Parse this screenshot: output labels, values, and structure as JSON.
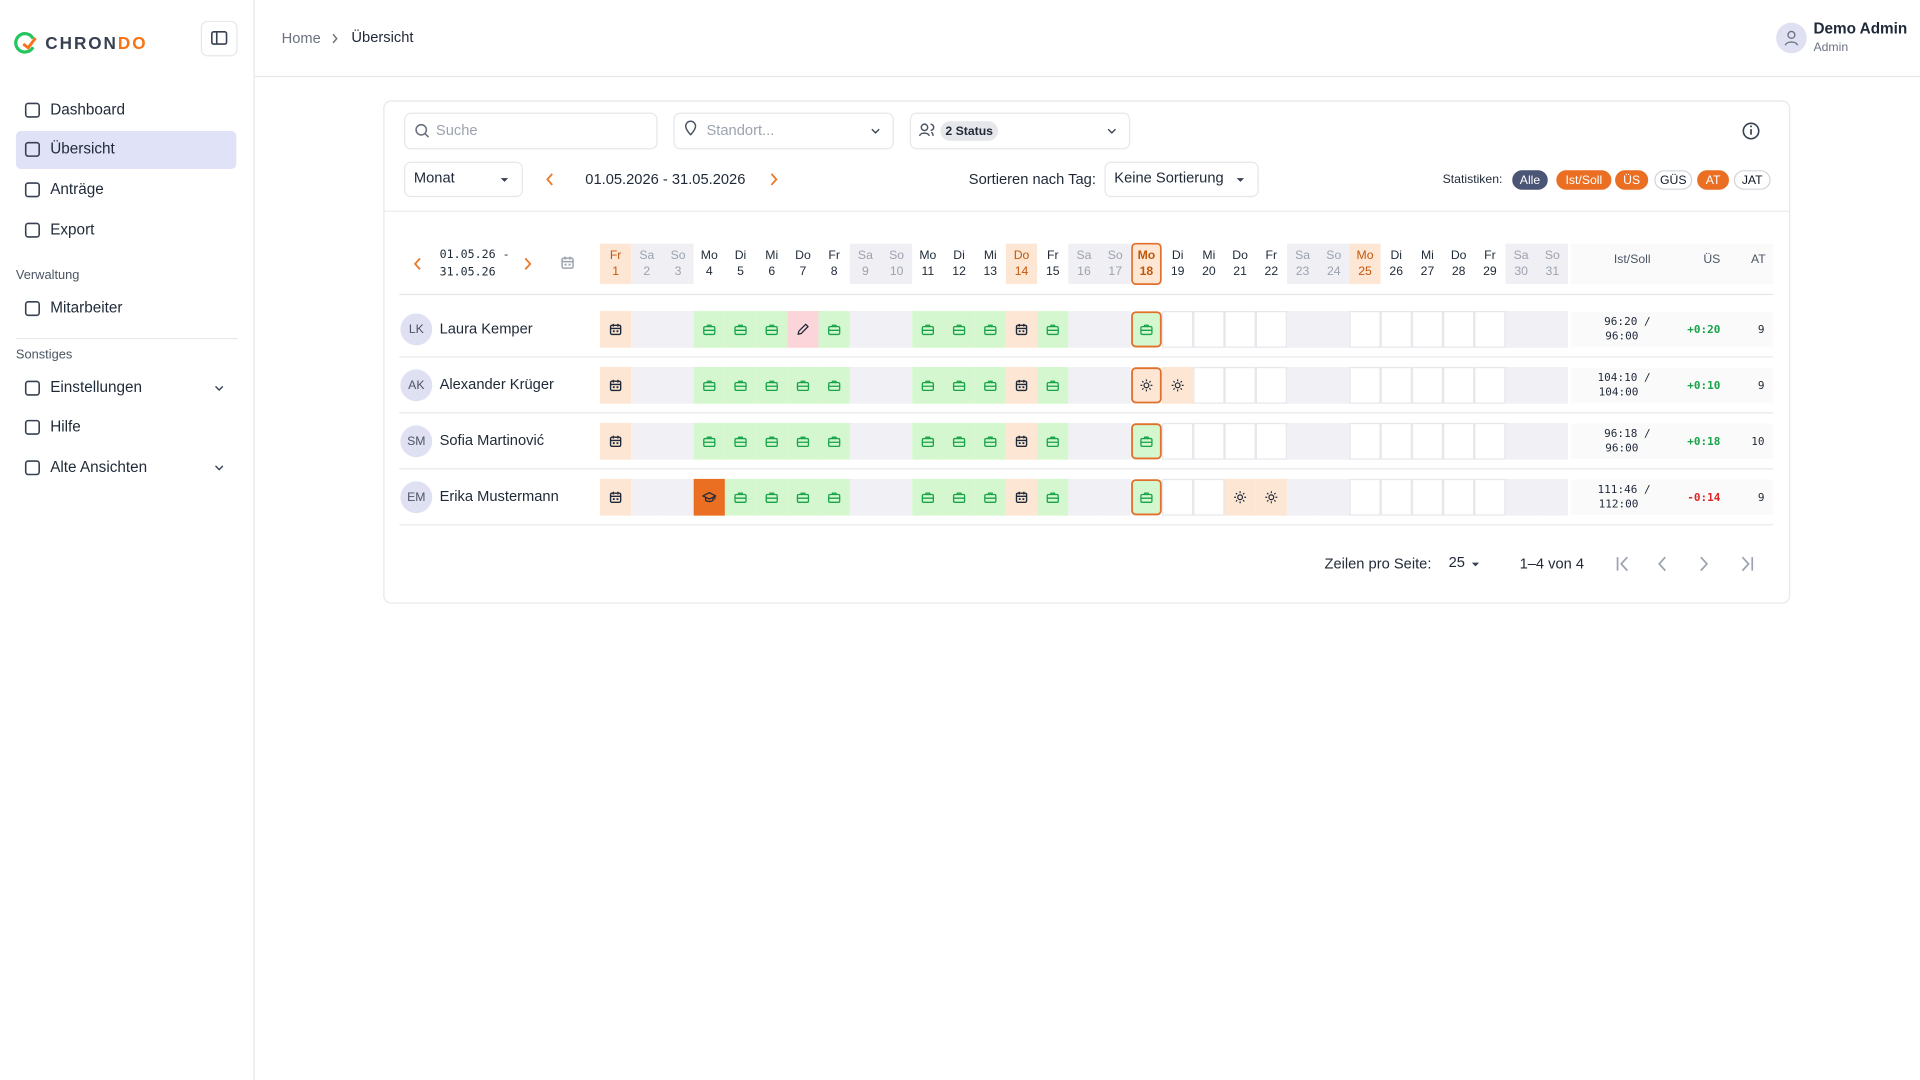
{
  "logo": {
    "part1": "CHRON",
    "part2": "DO"
  },
  "nav": {
    "main": [
      "Dashboard",
      "Übersicht",
      "Anträge",
      "Export"
    ],
    "section1": "Verwaltung",
    "section1_items": [
      "Mitarbeiter"
    ],
    "section2": "Sonstiges",
    "section2_items": [
      "Einstellungen",
      "Hilfe",
      "Alte Ansichten"
    ]
  },
  "breadcrumb": [
    "Home",
    "Übersicht"
  ],
  "user": {
    "name": "Demo Admin",
    "role": "Admin"
  },
  "filters": {
    "search_placeholder": "Suche",
    "location_placeholder": "Standort...",
    "status_chip": "2 Status",
    "period": "Monat",
    "date_range": "01.05.2026 - 31.05.2026",
    "sort_label": "Sortieren nach Tag:",
    "sort_value": "Keine Sortierung",
    "stats_label": "Statistiken:",
    "stats_chips": [
      "Alle",
      "Ist/Soll",
      "ÜS",
      "GÜS",
      "AT",
      "JAT"
    ]
  },
  "table": {
    "range": [
      "01.05.26 -",
      "31.05.26"
    ],
    "days": [
      {
        "name": "Fr",
        "day": 1
      },
      {
        "name": "Sa",
        "day": 2
      },
      {
        "name": "So",
        "day": 3
      },
      {
        "name": "Mo",
        "day": 4
      },
      {
        "name": "Di",
        "day": 5
      },
      {
        "name": "Mi",
        "day": 6
      },
      {
        "name": "Do",
        "day": 7
      },
      {
        "name": "Fr",
        "day": 8
      },
      {
        "name": "Sa",
        "day": 9
      },
      {
        "name": "So",
        "day": 10
      },
      {
        "name": "Mo",
        "day": 11
      },
      {
        "name": "Di",
        "day": 12
      },
      {
        "name": "Mi",
        "day": 13
      },
      {
        "name": "Do",
        "day": 14
      },
      {
        "name": "Fr",
        "day": 15
      },
      {
        "name": "Sa",
        "day": 16
      },
      {
        "name": "So",
        "day": 17
      },
      {
        "name": "Mo",
        "day": 18
      },
      {
        "name": "Di",
        "day": 19
      },
      {
        "name": "Mi",
        "day": 20
      },
      {
        "name": "Do",
        "day": 21
      },
      {
        "name": "Fr",
        "day": 22
      },
      {
        "name": "Sa",
        "day": 23
      },
      {
        "name": "So",
        "day": 24
      },
      {
        "name": "Mo",
        "day": 25
      },
      {
        "name": "Di",
        "day": 26
      },
      {
        "name": "Mi",
        "day": 27
      },
      {
        "name": "Do",
        "day": 28
      },
      {
        "name": "Fr",
        "day": 29
      },
      {
        "name": "Sa",
        "day": 30
      },
      {
        "name": "So",
        "day": 31
      }
    ],
    "columns": [
      "Ist/Soll",
      "ÜS",
      "AT"
    ],
    "rows": [
      {
        "initials": "LK",
        "name": "Laura Kemper",
        "ist_soll": [
          "96:20 /",
          "96:00"
        ],
        "us": "+0:20",
        "at": 9
      },
      {
        "initials": "AK",
        "name": "Alexander Krüger",
        "ist_soll": [
          "104:10 /",
          "104:00"
        ],
        "us": "+0:10",
        "at": 9
      },
      {
        "initials": "SM",
        "name": "Sofia Martinović",
        "ist_soll": [
          "96:18 /",
          "96:00"
        ],
        "us": "+0:18",
        "at": 10
      },
      {
        "initials": "EM",
        "name": "Erika Mustermann",
        "ist_soll": [
          "111:46 /",
          "112:00"
        ],
        "us": "-0:14",
        "at": 9
      }
    ]
  },
  "pagination": {
    "rows_label": "Zeilen pro Seite:",
    "rows_value": 25,
    "range": "1–4 von 4"
  }
}
